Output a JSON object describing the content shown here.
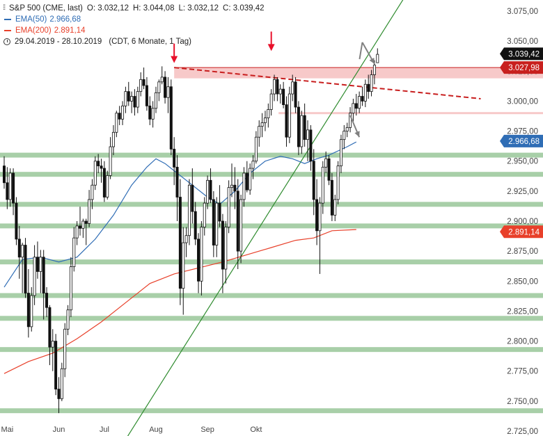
{
  "header": {
    "instrument": "S&P 500 (CME, last)",
    "open": "O: 3.032,12",
    "high": "H: 3.044,08",
    "low": "L: 3.032,12",
    "close": "C: 3.039,42",
    "ema50_label": "EMA(50)",
    "ema50_value": "2.966,68",
    "ema200_label": "EMA(200)",
    "ema200_value": "2.891,14",
    "range": "29.04.2019 - 28.10.2019",
    "settings": "(CDT, 6 Monate, 1 Tag)",
    "ohlc_icon": "ohlc-bars-icon",
    "clock_icon": "clock-icon"
  },
  "colors": {
    "ema50": "#2f6db5",
    "ema200": "#e8402a",
    "trend": "#2e8b2e",
    "support": "#a8cfa8",
    "resistance_zone": "#f7c9c9",
    "resistance_line": "#c81e1e",
    "arrow_red": "#e8102a",
    "arrow_gray": "#808080",
    "last_price": "#111111",
    "ema50_tag": "#2f6db5",
    "ema200_tag": "#e8402a",
    "resistance_tag": "#c8201e"
  },
  "chart_data": {
    "type": "candlestick",
    "ylim": [
      2725,
      3075
    ],
    "xlim": [
      0,
      133
    ],
    "y_ticks": [
      "3.075,00",
      "3.050,00",
      "3.025,00",
      "3.000,00",
      "2.975,00",
      "2.950,00",
      "2.925,00",
      "2.900,00",
      "2.875,00",
      "2.850,00",
      "2.825,00",
      "2.800,00",
      "2.775,00",
      "2.750,00",
      "2.725,00"
    ],
    "y_tick_values": [
      3075,
      3050,
      3025,
      3000,
      2975,
      2950,
      2925,
      2900,
      2875,
      2850,
      2825,
      2800,
      2775,
      2750,
      2725
    ],
    "x_ticks": [
      {
        "label": "Mai",
        "index": 1
      },
      {
        "label": "Jun",
        "index": 18
      },
      {
        "label": "Jul",
        "index": 33
      },
      {
        "label": "Aug",
        "index": 50
      },
      {
        "label": "Sep",
        "index": 67
      },
      {
        "label": "Okt",
        "index": 83
      }
    ],
    "candles": [
      [
        2946,
        2954,
        2927,
        2932
      ],
      [
        2932,
        2945,
        2910,
        2918
      ],
      [
        2918,
        2944,
        2912,
        2940
      ],
      [
        2940,
        2944,
        2905,
        2915
      ],
      [
        2915,
        2920,
        2880,
        2885
      ],
      [
        2885,
        2896,
        2852,
        2870
      ],
      [
        2870,
        2882,
        2840,
        2880
      ],
      [
        2880,
        2886,
        2836,
        2840
      ],
      [
        2840,
        2860,
        2803,
        2812
      ],
      [
        2812,
        2845,
        2808,
        2838
      ],
      [
        2838,
        2880,
        2830,
        2870
      ],
      [
        2870,
        2883,
        2852,
        2858
      ],
      [
        2858,
        2876,
        2840,
        2870
      ],
      [
        2870,
        2876,
        2818,
        2840
      ],
      [
        2840,
        2845,
        2820,
        2828
      ],
      [
        2828,
        2830,
        2780,
        2795
      ],
      [
        2795,
        2810,
        2775,
        2800
      ],
      [
        2800,
        2806,
        2755,
        2760
      ],
      [
        2760,
        2770,
        2740,
        2752
      ],
      [
        2752,
        2782,
        2750,
        2777
      ],
      [
        2777,
        2815,
        2770,
        2810
      ],
      [
        2810,
        2830,
        2805,
        2826
      ],
      [
        2826,
        2870,
        2820,
        2862
      ],
      [
        2862,
        2895,
        2858,
        2886
      ],
      [
        2886,
        2900,
        2880,
        2896
      ],
      [
        2896,
        2912,
        2888,
        2894
      ],
      [
        2894,
        2902,
        2886,
        2900
      ],
      [
        2900,
        2902,
        2880,
        2898
      ],
      [
        2898,
        2926,
        2895,
        2918
      ],
      [
        2918,
        2935,
        2910,
        2930
      ],
      [
        2930,
        2954,
        2926,
        2950
      ],
      [
        2950,
        2956,
        2940,
        2946
      ],
      [
        2946,
        2952,
        2932,
        2944
      ],
      [
        2944,
        2950,
        2916,
        2920
      ],
      [
        2920,
        2942,
        2918,
        2938
      ],
      [
        2938,
        2970,
        2935,
        2962
      ],
      [
        2962,
        2980,
        2955,
        2974
      ],
      [
        2974,
        2992,
        2970,
        2990
      ],
      [
        2990,
        2996,
        2980,
        2985
      ],
      [
        2985,
        3000,
        2980,
        2996
      ],
      [
        2996,
        3012,
        2990,
        3008
      ],
      [
        3008,
        3016,
        2996,
        3000
      ],
      [
        3000,
        3008,
        2990,
        3004
      ],
      [
        3004,
        3010,
        2988,
        2995
      ],
      [
        2995,
        3012,
        2990,
        3008
      ],
      [
        3008,
        3024,
        3004,
        3018
      ],
      [
        3018,
        3028,
        3010,
        3013
      ],
      [
        3013,
        3020,
        2992,
        2996
      ],
      [
        2996,
        3004,
        2980,
        2985
      ],
      [
        2985,
        3000,
        2978,
        2994
      ],
      [
        2994,
        3012,
        2990,
        3007
      ],
      [
        3007,
        3018,
        3000,
        3016
      ],
      [
        3016,
        3029,
        3014,
        3020
      ],
      [
        3020,
        3025,
        2998,
        3003
      ],
      [
        3003,
        3020,
        2990,
        3012
      ],
      [
        3012,
        3018,
        2955,
        2960
      ],
      [
        2960,
        2970,
        2930,
        2945
      ],
      [
        2945,
        2955,
        2900,
        2920
      ],
      [
        2920,
        2935,
        2830,
        2844
      ],
      [
        2844,
        2895,
        2822,
        2882
      ],
      [
        2882,
        2895,
        2870,
        2888
      ],
      [
        2888,
        2935,
        2880,
        2930
      ],
      [
        2930,
        2944,
        2898,
        2908
      ],
      [
        2908,
        2916,
        2880,
        2885
      ],
      [
        2885,
        2890,
        2840,
        2850
      ],
      [
        2850,
        2900,
        2838,
        2895
      ],
      [
        2895,
        2920,
        2888,
        2915
      ],
      [
        2915,
        2938,
        2910,
        2934
      ],
      [
        2934,
        2944,
        2915,
        2918
      ],
      [
        2918,
        2925,
        2870,
        2880
      ],
      [
        2880,
        2920,
        2870,
        2915
      ],
      [
        2915,
        2930,
        2895,
        2900
      ],
      [
        2900,
        2906,
        2840,
        2860
      ],
      [
        2860,
        2900,
        2848,
        2895
      ],
      [
        2895,
        2934,
        2890,
        2928
      ],
      [
        2928,
        2948,
        2920,
        2930
      ],
      [
        2930,
        2945,
        2910,
        2925
      ],
      [
        2925,
        2935,
        2860,
        2875
      ],
      [
        2875,
        2922,
        2865,
        2918
      ],
      [
        2918,
        2945,
        2912,
        2940
      ],
      [
        2940,
        2950,
        2924,
        2926
      ],
      [
        2926,
        2948,
        2922,
        2944
      ],
      [
        2944,
        2955,
        2935,
        2950
      ],
      [
        2950,
        2975,
        2948,
        2970
      ],
      [
        2970,
        2984,
        2962,
        2979
      ],
      [
        2979,
        2990,
        2970,
        2982
      ],
      [
        2982,
        2992,
        2975,
        2986
      ],
      [
        2986,
        2998,
        2978,
        2993
      ],
      [
        2993,
        3010,
        2988,
        3006
      ],
      [
        3006,
        3022,
        3000,
        3018
      ],
      [
        3018,
        3020,
        3000,
        3006
      ],
      [
        3006,
        3014,
        2998,
        3010
      ],
      [
        3010,
        3016,
        2994,
        2997
      ],
      [
        2997,
        3004,
        2962,
        2970
      ],
      [
        2970,
        3012,
        2965,
        3006
      ],
      [
        3006,
        3022,
        3000,
        3016
      ],
      [
        3016,
        3020,
        2990,
        2995
      ],
      [
        2995,
        3000,
        2955,
        2962
      ],
      [
        2962,
        2992,
        2956,
        2988
      ],
      [
        2988,
        2998,
        2962,
        2968
      ],
      [
        2968,
        2984,
        2950,
        2976
      ],
      [
        2976,
        2980,
        2942,
        2950
      ],
      [
        2950,
        2960,
        2905,
        2918
      ],
      [
        2918,
        2935,
        2880,
        2892
      ],
      [
        2892,
        2920,
        2856,
        2915
      ],
      [
        2915,
        2950,
        2906,
        2945
      ],
      [
        2945,
        2958,
        2940,
        2952
      ],
      [
        2952,
        2955,
        2930,
        2934
      ],
      [
        2934,
        2940,
        2900,
        2905
      ],
      [
        2905,
        2922,
        2900,
        2918
      ],
      [
        2918,
        2950,
        2914,
        2946
      ],
      [
        2946,
        2972,
        2940,
        2968
      ],
      [
        2968,
        2980,
        2960,
        2975
      ],
      [
        2975,
        2982,
        2970,
        2978
      ],
      [
        2978,
        2995,
        2974,
        2990
      ],
      [
        2990,
        3002,
        2983,
        2998
      ],
      [
        2998,
        3006,
        2988,
        2994
      ],
      [
        2994,
        3008,
        2990,
        3004
      ],
      [
        3004,
        3012,
        2996,
        3000
      ],
      [
        3000,
        3018,
        2995,
        3014
      ],
      [
        3014,
        3022,
        3002,
        3008
      ],
      [
        3008,
        3026,
        3004,
        3022
      ],
      [
        3022,
        3034,
        3014,
        3030
      ],
      [
        3032,
        3044,
        3032,
        3039
      ]
    ],
    "ema50": [
      [
        0,
        2845
      ],
      [
        6,
        2868
      ],
      [
        12,
        2870
      ],
      [
        18,
        2866
      ],
      [
        24,
        2870
      ],
      [
        30,
        2885
      ],
      [
        36,
        2905
      ],
      [
        42,
        2930
      ],
      [
        47,
        2945
      ],
      [
        50,
        2952
      ],
      [
        53,
        2948
      ],
      [
        57,
        2940
      ],
      [
        62,
        2930
      ],
      [
        67,
        2920
      ],
      [
        71,
        2914
      ],
      [
        76,
        2925
      ],
      [
        81,
        2940
      ],
      [
        86,
        2950
      ],
      [
        91,
        2954
      ],
      [
        95,
        2952
      ],
      [
        99,
        2948
      ],
      [
        103,
        2952
      ],
      [
        107,
        2955
      ],
      [
        113,
        2962
      ],
      [
        116,
        2966
      ]
    ],
    "ema200": [
      [
        0,
        2773
      ],
      [
        8,
        2783
      ],
      [
        16,
        2790
      ],
      [
        24,
        2802
      ],
      [
        32,
        2816
      ],
      [
        40,
        2832
      ],
      [
        48,
        2848
      ],
      [
        56,
        2856
      ],
      [
        64,
        2861
      ],
      [
        72,
        2866
      ],
      [
        80,
        2872
      ],
      [
        88,
        2878
      ],
      [
        96,
        2884
      ],
      [
        102,
        2886
      ],
      [
        108,
        2892
      ],
      [
        116,
        2893
      ]
    ],
    "trendline": {
      "start": [
        40,
        2718
      ],
      "end": [
        139,
        3115
      ]
    },
    "resistance": {
      "start": [
        56,
        3028
      ],
      "end": [
        157,
        3002
      ]
    },
    "resistance_zone": {
      "start_index": 56,
      "top": 3028,
      "bottom": 3019
    },
    "light_level": 2990,
    "supports": [
      2955,
      2939,
      2914,
      2896,
      2866,
      2838,
      2819,
      2793,
      2742
    ],
    "tags": [
      {
        "name": "last-price-tag",
        "label": "3.039,42",
        "value": 3039.42
      },
      {
        "name": "resistance-tag",
        "label": "3.027,98",
        "value": 3027.98
      },
      {
        "name": "ema50-tag",
        "label": "2.966,68",
        "value": 2966.68
      },
      {
        "name": "ema200-tag",
        "label": "2.891,14",
        "value": 2891.14
      }
    ],
    "red_arrows": [
      {
        "index": 56,
        "value": 3030
      },
      {
        "index": 88,
        "value": 3040
      }
    ],
    "gray_arrows": [
      {
        "from_index": 118,
        "from_value": 3049,
        "to_index": 122,
        "to_value": 3031
      },
      {
        "from_index": 114,
        "from_value": 2988,
        "to_index": 117,
        "to_value": 2970
      }
    ]
  }
}
